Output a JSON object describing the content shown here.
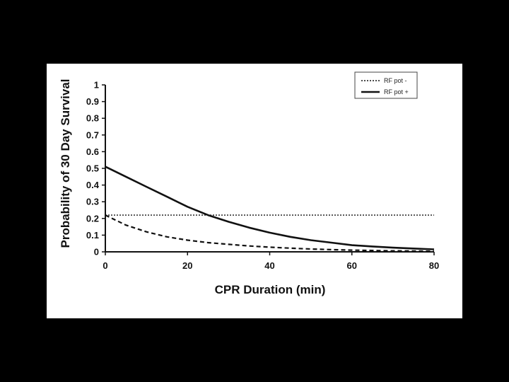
{
  "chart_data": {
    "type": "line",
    "title": "",
    "xlabel": "CPR Duration (min)",
    "ylabel": "Probability of 30 Day Survival",
    "xlim": [
      0,
      80
    ],
    "ylim": [
      0,
      1
    ],
    "x_ticks": [
      "0",
      "20",
      "40",
      "60",
      "80"
    ],
    "y_ticks": [
      "0",
      "0.1",
      "0.2",
      "0.3",
      "0.4",
      "0.5",
      "0.6",
      "0.7",
      "0.8",
      "0.9",
      "1"
    ],
    "legend_position": "top-right",
    "grid": false,
    "series": [
      {
        "name": "RF pot -",
        "style": "dotted",
        "x": [
          0,
          5,
          10,
          15,
          20,
          25,
          30,
          35,
          40,
          45,
          50,
          55,
          60,
          65,
          70,
          75,
          80
        ],
        "y": [
          0.22,
          0.22,
          0.22,
          0.22,
          0.22,
          0.22,
          0.22,
          0.22,
          0.22,
          0.22,
          0.22,
          0.22,
          0.22,
          0.22,
          0.22,
          0.22,
          0.22
        ]
      },
      {
        "name": "RF pot +",
        "style": "solid",
        "x": [
          0,
          5,
          10,
          15,
          20,
          25,
          30,
          35,
          40,
          45,
          50,
          55,
          60,
          65,
          70,
          75,
          80
        ],
        "y": [
          0.51,
          0.45,
          0.39,
          0.33,
          0.27,
          0.22,
          0.18,
          0.145,
          0.115,
          0.09,
          0.07,
          0.055,
          0.04,
          0.032,
          0.025,
          0.02,
          0.015
        ]
      },
      {
        "name": "",
        "style": "dashed",
        "x": [
          0,
          5,
          10,
          15,
          20,
          25,
          30,
          35,
          40,
          45,
          50,
          55,
          60,
          65,
          70,
          75,
          80
        ],
        "y": [
          0.22,
          0.16,
          0.12,
          0.09,
          0.07,
          0.055,
          0.045,
          0.035,
          0.028,
          0.022,
          0.017,
          0.013,
          0.01,
          0.008,
          0.006,
          0.005,
          0.004
        ]
      }
    ]
  }
}
